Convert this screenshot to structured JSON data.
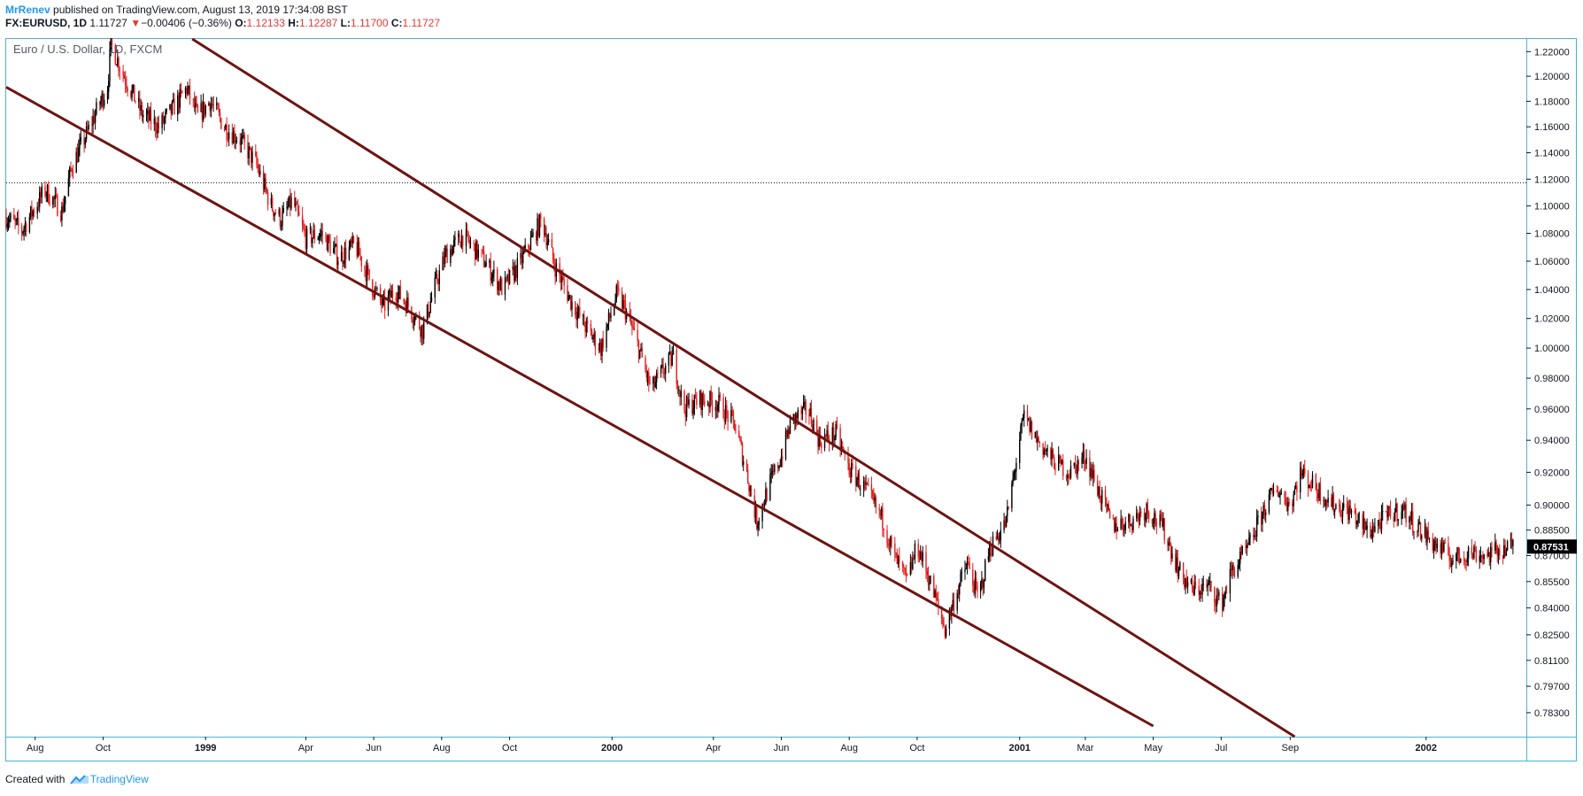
{
  "header": {
    "author": "MrRenev",
    "published_text": "published on TradingView.com, August 13, 2019 17:34:08 BST",
    "symbol": "FX:EURUSD, 1D",
    "last": "1.11727",
    "change": "−0.00406 (−0.36%)",
    "o_label": "O:",
    "o_value": "1.12133",
    "h_label": "H:",
    "h_value": "1.12287",
    "l_label": "L:",
    "l_value": "1.11700",
    "c_label": "C:",
    "c_value": "1.11727"
  },
  "footer": {
    "created_with": "Created with",
    "brand": "TradingView"
  },
  "chart_data": {
    "type": "candlestick",
    "title": "Euro / U.S. Dollar, 1D, FXCM",
    "y_scale": "log",
    "ylim": [
      0.7705,
      1.2304
    ],
    "xlim": [
      "1998-07-06",
      "2002-04-01"
    ],
    "y_ticks": [
      "0.78300",
      "0.79700",
      "0.81100",
      "0.82500",
      "0.84000",
      "0.85500",
      "0.87000",
      "0.88500",
      "0.90000",
      "0.92000",
      "0.94000",
      "0.96000",
      "0.98000",
      "1.00000",
      "1.02000",
      "1.04000",
      "1.06000",
      "1.08000",
      "1.10000",
      "1.12000",
      "1.14000",
      "1.16000",
      "1.18000",
      "1.20000",
      "1.22000"
    ],
    "x_ticks": [
      {
        "label": "Aug",
        "date": "1998-08-01"
      },
      {
        "label": "Oct",
        "date": "1998-10-01"
      },
      {
        "label": "1999",
        "date": "1999-01-01"
      },
      {
        "label": "Apr",
        "date": "1999-04-01"
      },
      {
        "label": "Jun",
        "date": "1999-06-01"
      },
      {
        "label": "Aug",
        "date": "1999-08-01"
      },
      {
        "label": "Oct",
        "date": "1999-10-01"
      },
      {
        "label": "2000",
        "date": "2000-01-01"
      },
      {
        "label": "Apr",
        "date": "2000-04-01"
      },
      {
        "label": "Jun",
        "date": "2000-06-01"
      },
      {
        "label": "Aug",
        "date": "2000-08-01"
      },
      {
        "label": "Oct",
        "date": "2000-10-01"
      },
      {
        "label": "2001",
        "date": "2001-01-01"
      },
      {
        "label": "Mar",
        "date": "2001-03-01"
      },
      {
        "label": "May",
        "date": "2001-05-01"
      },
      {
        "label": "Jul",
        "date": "2001-07-01"
      },
      {
        "label": "Sep",
        "date": "2001-09-01"
      },
      {
        "label": "2002",
        "date": "2002-01-01"
      }
    ],
    "last_price_label": "0.87531",
    "last_price_value": 0.87531,
    "horizontal_line": 1.1172,
    "trend_lines": [
      {
        "from": {
          "date": "1998-07-06",
          "value": 1.1913
        },
        "to": {
          "date": "2001-05-01",
          "value": 0.776
        }
      },
      {
        "from": {
          "date": "1998-12-20",
          "value": 1.2304
        },
        "to": {
          "date": "2001-09-05",
          "value": 0.7705
        }
      }
    ],
    "price_path": [
      [
        "1998-07-06",
        1.092
      ],
      [
        "1998-07-20",
        1.082
      ],
      [
        "1998-08-10",
        1.112
      ],
      [
        "1998-08-25",
        1.096
      ],
      [
        "1998-09-03",
        1.13
      ],
      [
        "1998-09-15",
        1.152
      ],
      [
        "1998-09-25",
        1.172
      ],
      [
        "1998-10-05",
        1.192
      ],
      [
        "1998-10-08",
        1.226
      ],
      [
        "1998-10-20",
        1.2
      ],
      [
        "1998-11-05",
        1.17
      ],
      [
        "1998-11-20",
        1.16
      ],
      [
        "1998-12-01",
        1.172
      ],
      [
        "1998-12-15",
        1.19
      ],
      [
        "1998-12-25",
        1.168
      ],
      [
        "1999-01-05",
        1.18
      ],
      [
        "1999-01-18",
        1.16
      ],
      [
        "1999-02-01",
        1.15
      ],
      [
        "1999-02-15",
        1.132
      ],
      [
        "1999-03-01",
        1.1
      ],
      [
        "1999-03-10",
        1.09
      ],
      [
        "1999-03-20",
        1.104
      ],
      [
        "1999-04-01",
        1.076
      ],
      [
        "1999-04-15",
        1.08
      ],
      [
        "1999-05-01",
        1.062
      ],
      [
        "1999-05-15",
        1.072
      ],
      [
        "1999-06-01",
        1.04
      ],
      [
        "1999-06-10",
        1.028
      ],
      [
        "1999-06-20",
        1.04
      ],
      [
        "1999-07-01",
        1.03
      ],
      [
        "1999-07-15",
        1.012
      ],
      [
        "1999-07-25",
        1.04
      ],
      [
        "1999-08-05",
        1.065
      ],
      [
        "1999-08-20",
        1.078
      ],
      [
        "1999-09-05",
        1.064
      ],
      [
        "1999-09-15",
        1.052
      ],
      [
        "1999-09-25",
        1.04
      ],
      [
        "1999-10-10",
        1.058
      ],
      [
        "1999-10-25",
        1.082
      ],
      [
        "1999-10-30",
        1.09
      ],
      [
        "1999-11-10",
        1.058
      ],
      [
        "1999-11-25",
        1.032
      ],
      [
        "1999-12-10",
        1.012
      ],
      [
        "1999-12-22",
        1.0
      ],
      [
        "2000-01-05",
        1.036
      ],
      [
        "2000-01-12",
        1.028
      ],
      [
        "2000-01-25",
        1.0
      ],
      [
        "2000-02-05",
        0.972
      ],
      [
        "2000-02-15",
        0.984
      ],
      [
        "2000-02-25",
        0.994
      ],
      [
        "2000-03-05",
        0.96
      ],
      [
        "2000-03-20",
        0.966
      ],
      [
        "2000-04-05",
        0.964
      ],
      [
        "2000-04-20",
        0.95
      ],
      [
        "2000-05-01",
        0.92
      ],
      [
        "2000-05-10",
        0.89
      ],
      [
        "2000-05-20",
        0.91
      ],
      [
        "2000-06-01",
        0.93
      ],
      [
        "2000-06-10",
        0.952
      ],
      [
        "2000-06-25",
        0.96
      ],
      [
        "2000-07-05",
        0.94
      ],
      [
        "2000-07-20",
        0.944
      ],
      [
        "2000-08-01",
        0.922
      ],
      [
        "2000-08-15",
        0.91
      ],
      [
        "2000-09-01",
        0.89
      ],
      [
        "2000-09-10",
        0.87
      ],
      [
        "2000-09-22",
        0.855
      ],
      [
        "2000-10-01",
        0.876
      ],
      [
        "2000-10-10",
        0.86
      ],
      [
        "2000-10-20",
        0.84
      ],
      [
        "2000-10-26",
        0.828
      ],
      [
        "2000-11-05",
        0.848
      ],
      [
        "2000-11-15",
        0.865
      ],
      [
        "2000-11-25",
        0.845
      ],
      [
        "2000-12-05",
        0.874
      ],
      [
        "2000-12-20",
        0.89
      ],
      [
        "2001-01-01",
        0.94
      ],
      [
        "2001-01-05",
        0.955
      ],
      [
        "2001-01-15",
        0.942
      ],
      [
        "2001-01-30",
        0.928
      ],
      [
        "2001-02-15",
        0.92
      ],
      [
        "2001-03-01",
        0.93
      ],
      [
        "2001-03-15",
        0.905
      ],
      [
        "2001-03-25",
        0.888
      ],
      [
        "2001-04-10",
        0.89
      ],
      [
        "2001-04-25",
        0.898
      ],
      [
        "2001-05-10",
        0.886
      ],
      [
        "2001-05-25",
        0.86
      ],
      [
        "2001-06-05",
        0.85
      ],
      [
        "2001-06-20",
        0.852
      ],
      [
        "2001-07-01",
        0.842
      ],
      [
        "2001-07-10",
        0.86
      ],
      [
        "2001-07-25",
        0.874
      ],
      [
        "2001-08-10",
        0.9
      ],
      [
        "2001-08-20",
        0.91
      ],
      [
        "2001-09-01",
        0.9
      ],
      [
        "2001-09-10",
        0.92
      ],
      [
        "2001-09-25",
        0.91
      ],
      [
        "2001-10-10",
        0.9
      ],
      [
        "2001-10-25",
        0.896
      ],
      [
        "2001-11-10",
        0.884
      ],
      [
        "2001-11-25",
        0.892
      ],
      [
        "2001-12-10",
        0.898
      ],
      [
        "2001-12-25",
        0.886
      ],
      [
        "2002-01-10",
        0.876
      ],
      [
        "2002-01-25",
        0.868
      ],
      [
        "2002-02-10",
        0.872
      ],
      [
        "2002-02-25",
        0.87
      ],
      [
        "2002-03-10",
        0.874
      ],
      [
        "2002-03-20",
        0.875
      ]
    ]
  },
  "colors": {
    "up": "#000000",
    "down": "#e21d1d",
    "trend": "#6d1411",
    "frame": "#46b6d3",
    "text": "#131722",
    "brand": "#2196f3",
    "last_bg": "#000000",
    "hline": "#131722"
  }
}
